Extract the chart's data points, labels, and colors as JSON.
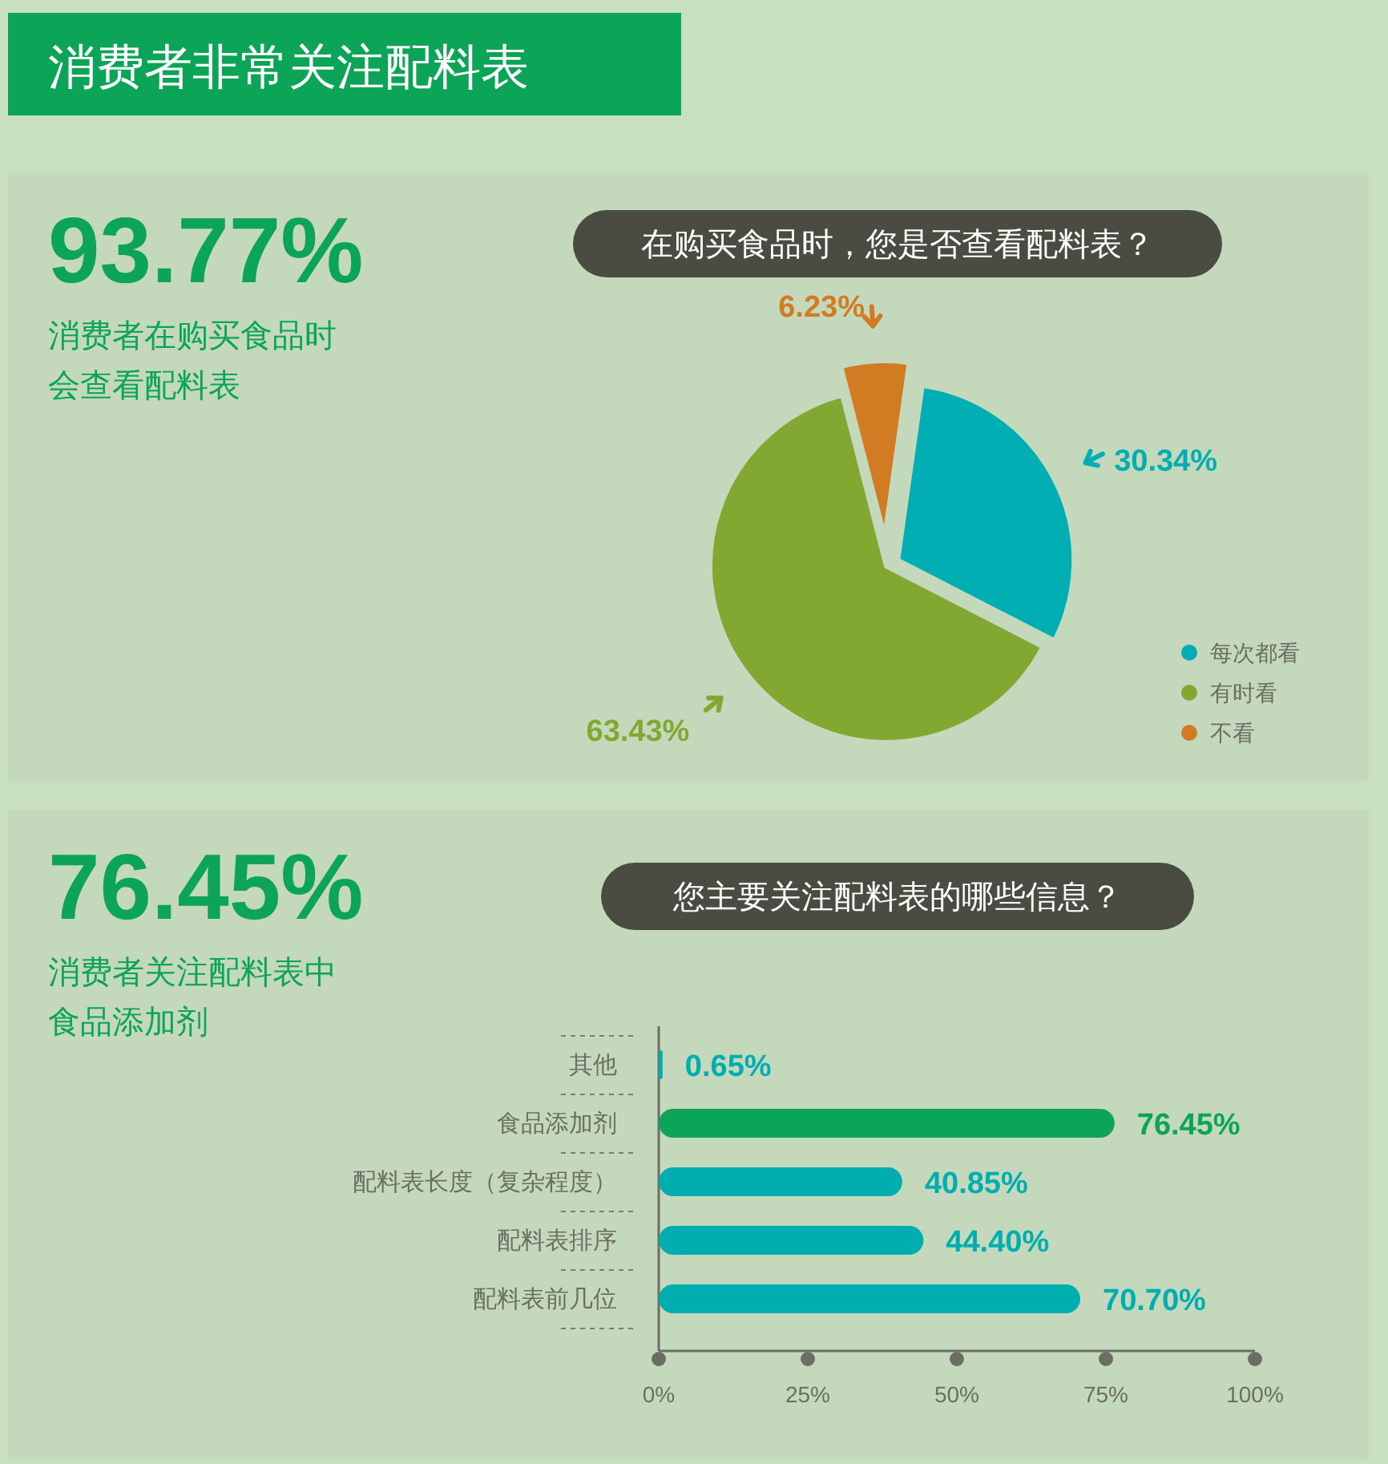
{
  "chart_data": [
    {
      "type": "pie",
      "title": "消费者非常关注配料表",
      "subtitle": "在购买食品时，您是否查看配料表？",
      "annotations": [
        "93.77%",
        "消费者在购买食品时",
        "会查看配料表"
      ],
      "categories": [
        "每次都看",
        "有时看",
        "不看"
      ],
      "values": [
        30.34,
        63.43,
        6.23
      ],
      "colors": [
        "#00aeb3",
        "#82a832",
        "#d17b22"
      ],
      "value_labels": [
        "30.34%",
        "63.43%",
        "6.23%"
      ],
      "legend": "bottom right"
    },
    {
      "type": "bar",
      "orientation": "horizontal",
      "title": "您主要关注配料表的哪些信息？",
      "annotations": [
        "76.45%",
        "消费者关注配料表中",
        "食品添加剂"
      ],
      "categories": [
        "其他",
        "食品添加剂",
        "配料表长度（复杂程度）",
        "配料表排序",
        "配料表前几位"
      ],
      "values": [
        0.65,
        76.45,
        40.85,
        44.4,
        70.7
      ],
      "colors": [
        "#00aeb0",
        "#0ca457",
        "#00aeb0",
        "#00aeb0",
        "#00aeb0"
      ],
      "value_labels": [
        "0.65%",
        "76.45%",
        "40.85%",
        "44.40%",
        "70.70%"
      ],
      "xlim": [
        0,
        100
      ],
      "xticks": [
        {
          "value": 0,
          "label": "0%"
        },
        {
          "value": 25,
          "label": "25%"
        },
        {
          "value": 50,
          "label": "50%"
        },
        {
          "value": 75,
          "label": "75%"
        },
        {
          "value": 100,
          "label": "100%"
        }
      ],
      "grid": false
    }
  ]
}
